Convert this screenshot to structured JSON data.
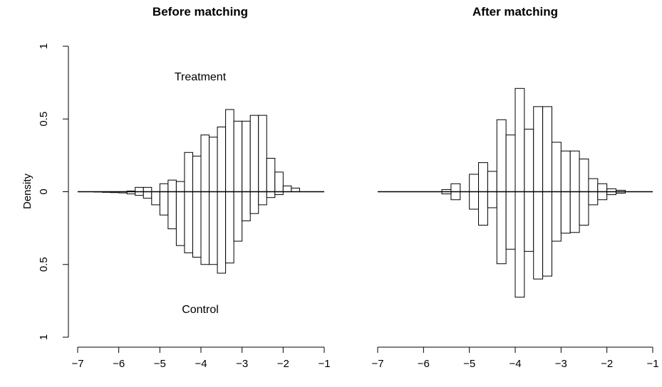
{
  "chart_data": [
    {
      "type": "bar",
      "subtype": "mirrored-histogram",
      "title": "Before matching",
      "ylabel": "Density",
      "xlabel": "",
      "xlim": [
        -7,
        -1
      ],
      "ylim": [
        -1,
        1
      ],
      "x_ticks": [
        -7,
        -6,
        -5,
        -4,
        -3,
        -2,
        -1
      ],
      "x_tick_labels": [
        "−7",
        "−6",
        "−5",
        "−4",
        "−3",
        "−2",
        "−1"
      ],
      "y_ticks": [
        1,
        0.5,
        0,
        -0.5,
        -1
      ],
      "y_tick_labels": [
        "1",
        "0.5",
        "0",
        "0.5",
        "1"
      ],
      "annotations": [
        {
          "text": "Treatment",
          "x": -3.2,
          "y": 0.79
        },
        {
          "text": "Control",
          "x": -3.2,
          "y": -0.81
        }
      ],
      "bin_width": 0.2,
      "bins": [
        -6.6,
        -6.4,
        -6.2,
        -6.0,
        -5.8,
        -5.6,
        -5.4,
        -5.2,
        -5.0,
        -4.8,
        -4.6,
        -4.4,
        -4.2,
        -4.0,
        -3.8,
        -3.6,
        -3.4,
        -3.2,
        -3.0,
        -2.8,
        -2.6,
        -2.4,
        -2.2,
        -2.0,
        -1.8
      ],
      "series": [
        {
          "name": "Treatment",
          "values": [
            0.0,
            0.0,
            0.0,
            0.0,
            0.005,
            0.03,
            0.03,
            0.0,
            0.055,
            0.08,
            0.07,
            0.27,
            0.245,
            0.39,
            0.375,
            0.445,
            0.565,
            0.485,
            0.485,
            0.525,
            0.525,
            0.23,
            0.135,
            0.04,
            0.025
          ]
        },
        {
          "name": "Control",
          "values": [
            0.002,
            0.004,
            0.006,
            0.008,
            0.015,
            0.025,
            0.045,
            0.09,
            0.16,
            0.255,
            0.37,
            0.42,
            0.45,
            0.5,
            0.5,
            0.56,
            0.49,
            0.34,
            0.2,
            0.15,
            0.09,
            0.04,
            0.02,
            0.0,
            0.0
          ]
        }
      ]
    },
    {
      "type": "bar",
      "subtype": "mirrored-histogram",
      "title": "After matching",
      "ylabel": "",
      "xlabel": "",
      "xlim": [
        -7,
        -1
      ],
      "ylim": [
        -1,
        1
      ],
      "x_ticks": [
        -7,
        -6,
        -5,
        -4,
        -3,
        -2,
        -1
      ],
      "x_tick_labels": [
        "−7",
        "−6",
        "−5",
        "−4",
        "−3",
        "−2",
        "−1"
      ],
      "bin_width": 0.2,
      "bins": [
        -6.6,
        -6.4,
        -6.2,
        -6.0,
        -5.8,
        -5.6,
        -5.4,
        -5.2,
        -5.0,
        -4.8,
        -4.6,
        -4.4,
        -4.2,
        -4.0,
        -3.8,
        -3.6,
        -3.4,
        -3.2,
        -3.0,
        -2.8,
        -2.6,
        -2.4,
        -2.2,
        -2.0,
        -1.8
      ],
      "series": [
        {
          "name": "Treatment",
          "values": [
            0.0,
            0.0,
            0.0,
            0.0,
            0.0,
            0.015,
            0.055,
            0.0,
            0.12,
            0.2,
            0.14,
            0.495,
            0.39,
            0.71,
            0.43,
            0.585,
            0.585,
            0.34,
            0.28,
            0.28,
            0.225,
            0.09,
            0.055,
            0.02,
            0.01
          ]
        },
        {
          "name": "Control",
          "values": [
            0.0,
            0.0,
            0.0,
            0.0,
            0.0,
            0.015,
            0.055,
            0.0,
            0.12,
            0.23,
            0.11,
            0.495,
            0.395,
            0.725,
            0.41,
            0.6,
            0.58,
            0.34,
            0.285,
            0.28,
            0.23,
            0.09,
            0.055,
            0.02,
            0.01
          ]
        }
      ]
    }
  ]
}
